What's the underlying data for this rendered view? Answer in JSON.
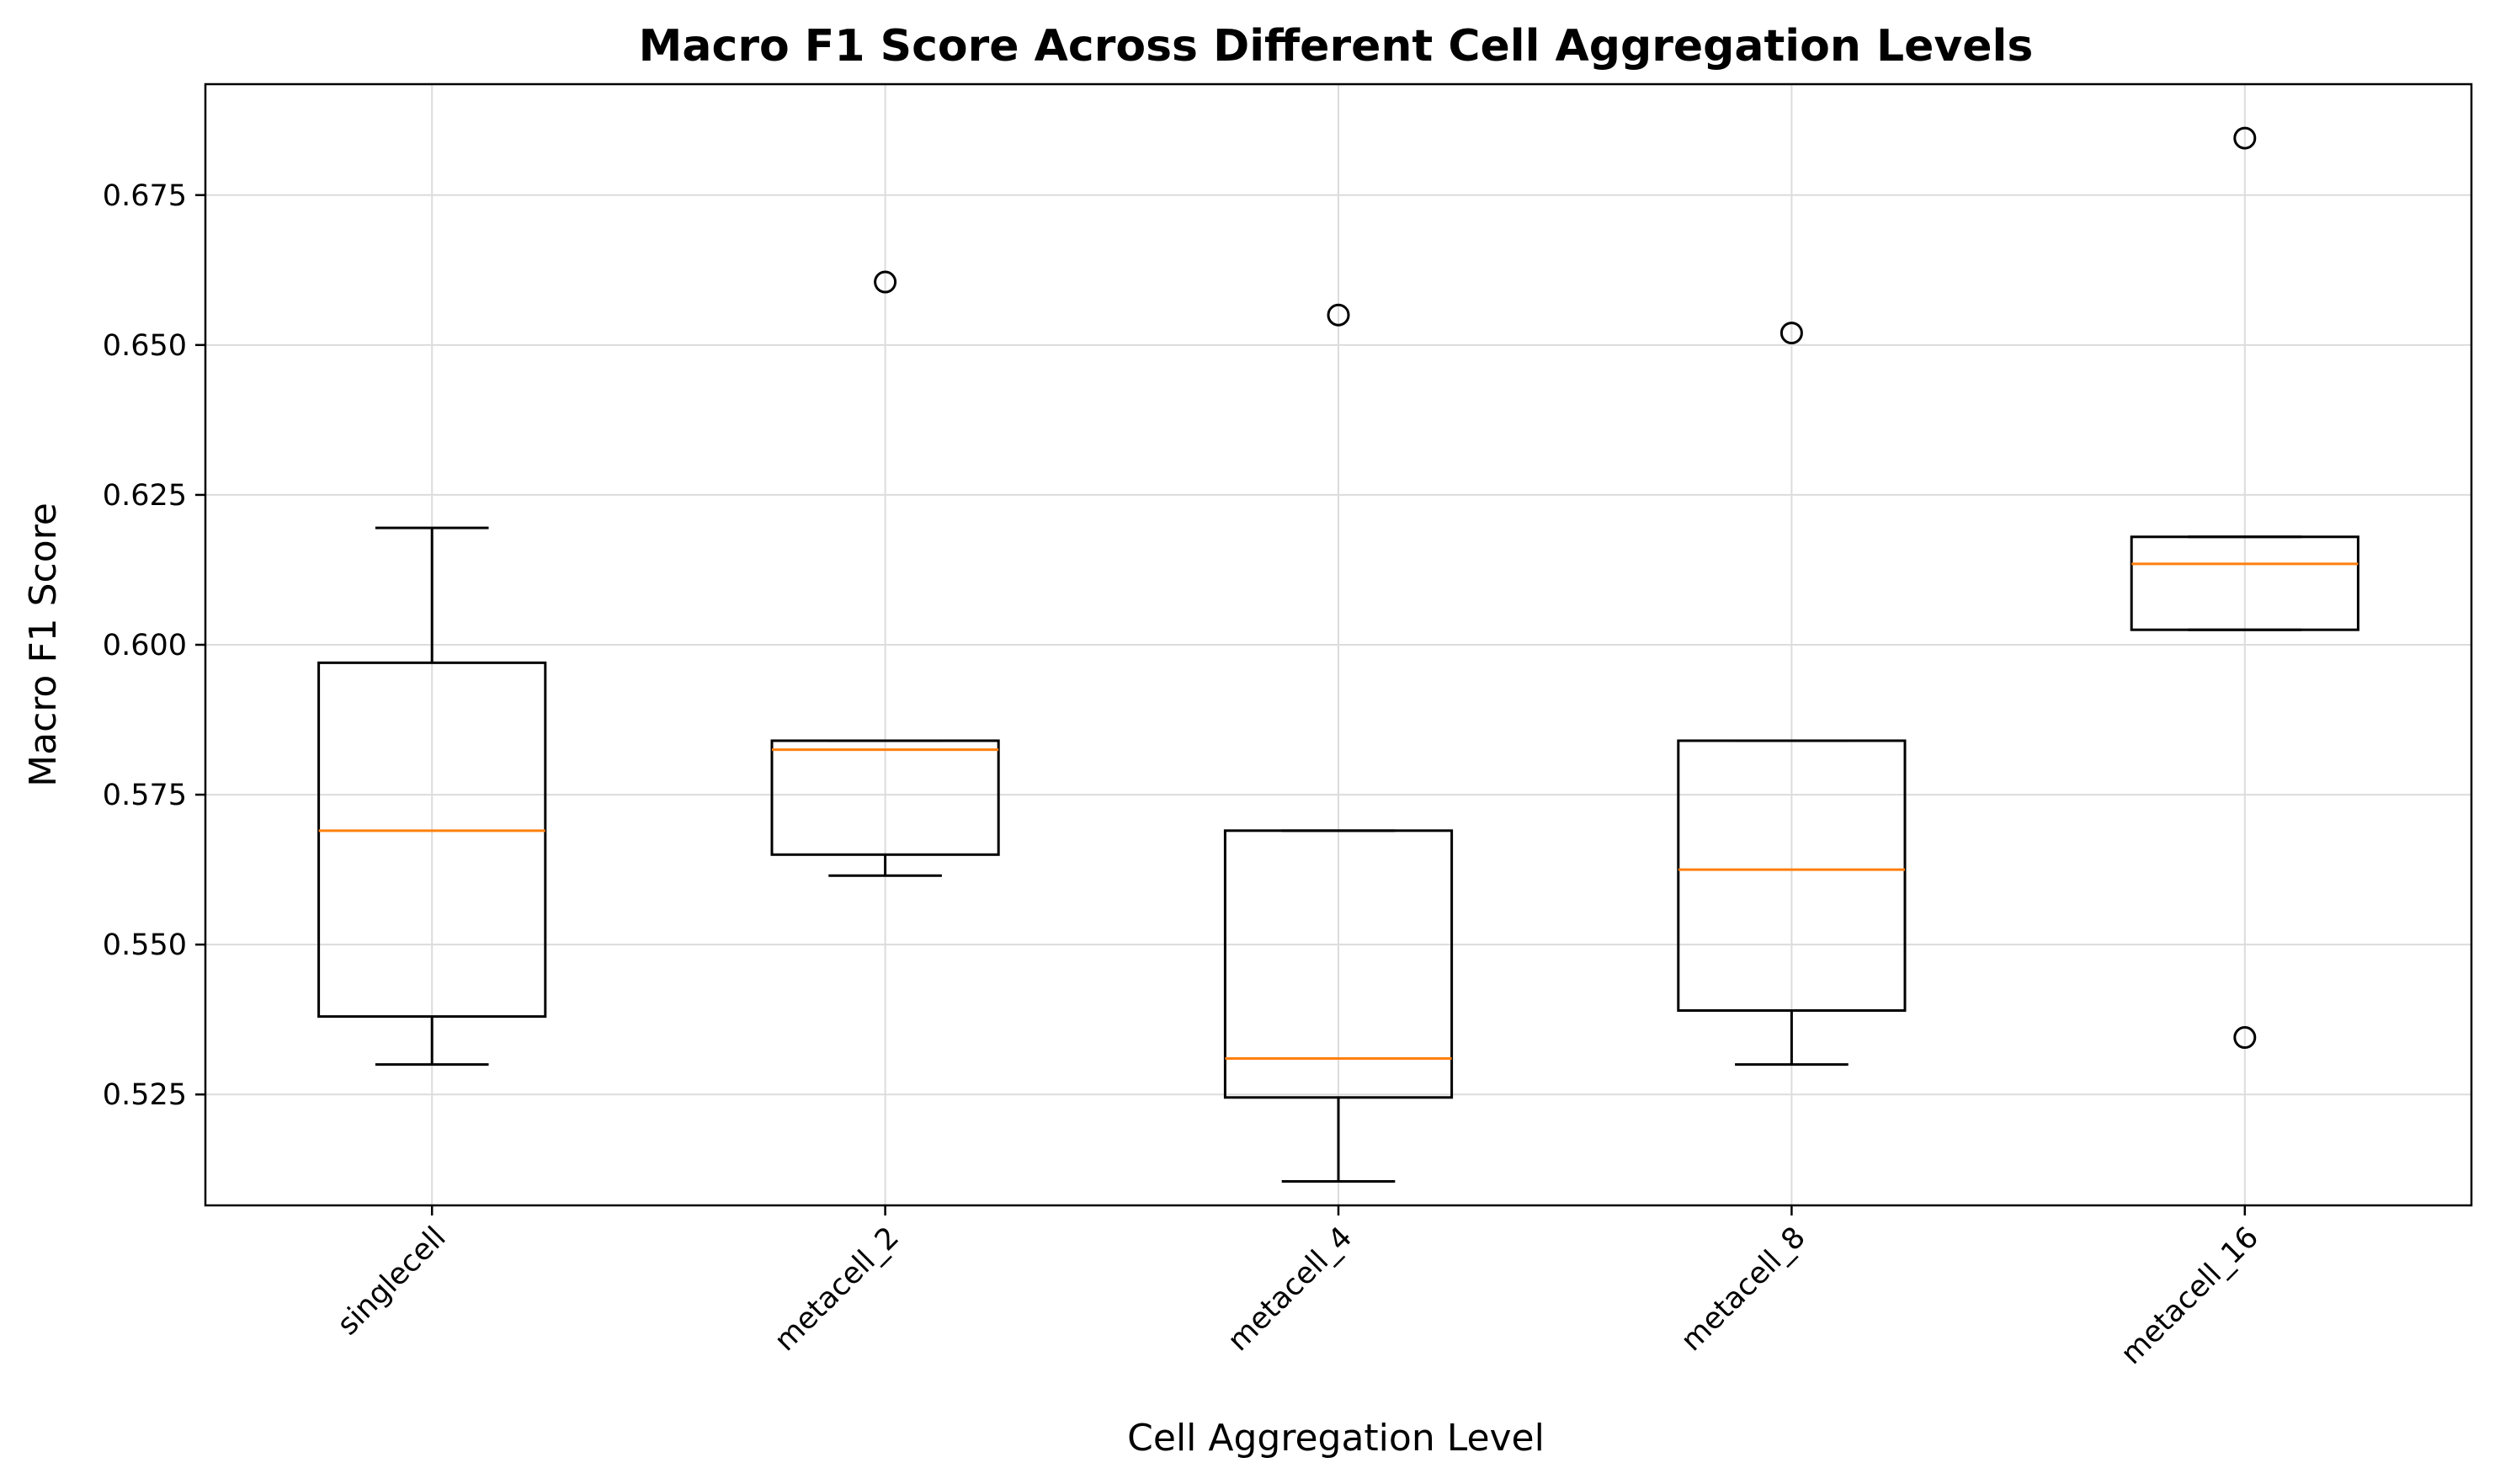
{
  "chart_data": {
    "type": "box",
    "title": "Macro F1 Score Across Different Cell Aggregation Levels",
    "xlabel": "Cell Aggregation Level",
    "ylabel": "Macro F1 Score",
    "ylim": [
      0.5065,
      0.6935
    ],
    "yticks": [
      0.525,
      0.55,
      0.575,
      0.6,
      0.625,
      0.65,
      0.675
    ],
    "ytick_labels": [
      "0.525",
      "0.550",
      "0.575",
      "0.600",
      "0.625",
      "0.650",
      "0.675"
    ],
    "categories": [
      "singlecell",
      "metacell_2",
      "metacell_4",
      "metacell_8",
      "metacell_16"
    ],
    "grid": true,
    "boxes": [
      {
        "whislo": 0.53,
        "q1": 0.538,
        "med": 0.569,
        "q3": 0.597,
        "whishi": 0.6195,
        "fliers": []
      },
      {
        "whislo": 0.5615,
        "q1": 0.565,
        "med": 0.5825,
        "q3": 0.584,
        "whishi": 0.584,
        "fliers": [
          0.6605
        ]
      },
      {
        "whislo": 0.5105,
        "q1": 0.5245,
        "med": 0.531,
        "q3": 0.569,
        "whishi": 0.569,
        "fliers": [
          0.655
        ]
      },
      {
        "whislo": 0.53,
        "q1": 0.539,
        "med": 0.5625,
        "q3": 0.584,
        "whishi": 0.584,
        "fliers": [
          0.652
        ]
      },
      {
        "whislo": 0.6025,
        "q1": 0.6025,
        "med": 0.6135,
        "q3": 0.618,
        "whishi": 0.618,
        "fliers": [
          0.6845,
          0.5345
        ]
      }
    ],
    "colors": {
      "box": "#000000",
      "median": "#ff7f0e",
      "grid": "#dcdcdc"
    }
  }
}
